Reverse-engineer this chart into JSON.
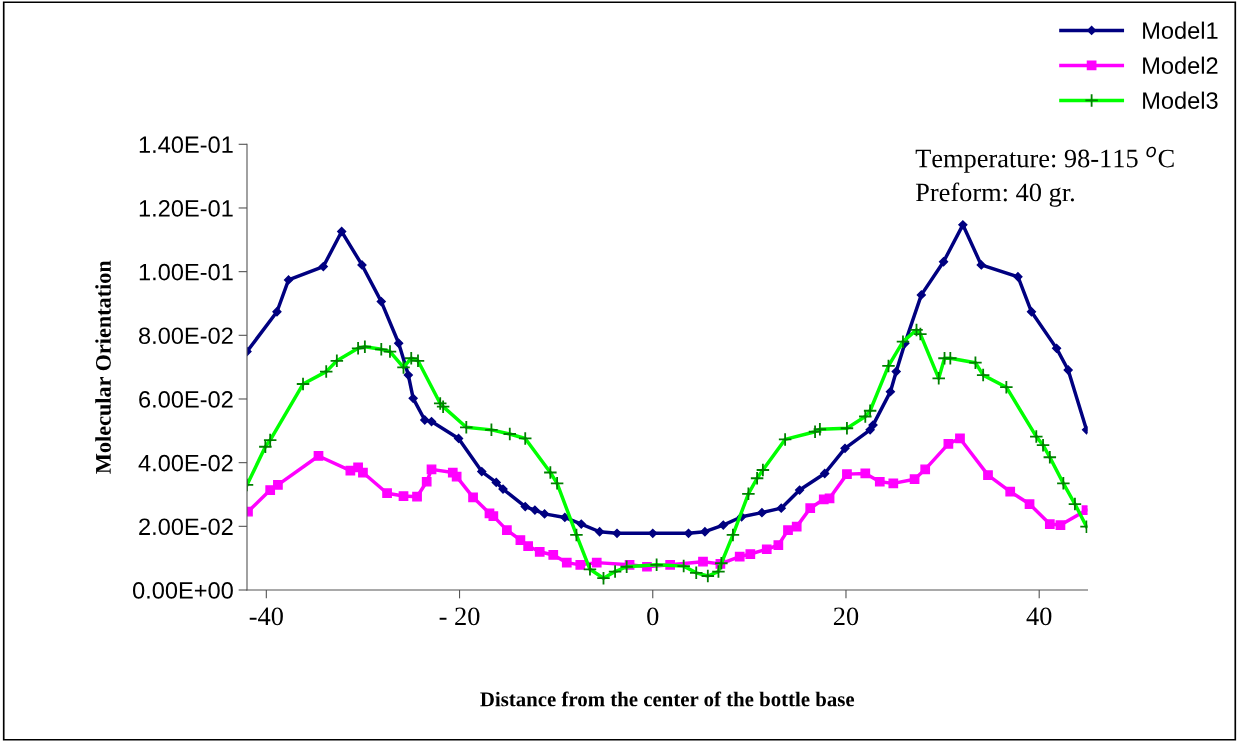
{
  "chart_data": {
    "type": "line",
    "xlabel": "Distance from the center of the bottle base",
    "ylabel": "Molecular Orientation",
    "annotations": [
      "Temperature: 98-115 $^{o}$C",
      "Preform: 40 gr."
    ],
    "xlim": [
      -42,
      45
    ],
    "xticks": [
      -40,
      {
        "value": -20,
        "label": "- 20"
      },
      0,
      20,
      40
    ],
    "ylim": [
      0,
      0.14
    ],
    "yticks": [
      {
        "value": 0,
        "label": "0.00E+00"
      },
      {
        "value": 0.02,
        "label": "2.00E-02"
      },
      {
        "value": 0.04,
        "label": "4.00E-02"
      },
      {
        "value": 0.06,
        "label": "6.00E-02"
      },
      {
        "value": 0.08,
        "label": "8.00E-02"
      },
      {
        "value": 0.1,
        "label": "1.00E-01"
      },
      {
        "value": 0.12,
        "label": "1.20E-01"
      },
      {
        "value": 0.14,
        "label": "1.40E-01"
      }
    ],
    "grid": false,
    "legend": "top right",
    "line_style": "solid",
    "series": [
      {
        "name": "Model1",
        "color": "#000080",
        "marker": "diamond",
        "x": [
          -42,
          -38.9,
          -37.7,
          -34.1,
          -32.2,
          -30.1,
          -28.1,
          -26.3,
          -25.3,
          -24.8,
          -23.6,
          -22.9,
          -20.1,
          -17.7,
          -16.2,
          -15.5,
          -13.2,
          -12.2,
          -11.2,
          -9.1,
          -7.4,
          -5.5,
          -3.7,
          0,
          3.7,
          5.4,
          7.3,
          9.2,
          11.3,
          13.3,
          15.2,
          17.8,
          19.9,
          22.5,
          22.8,
          24.6,
          25.2,
          26.1,
          27.8,
          30.1,
          32.1,
          34.0,
          37.8,
          39.2,
          41.8,
          43.0,
          44.9
        ],
        "values": [
          0.0749,
          0.0874,
          0.0974,
          0.1016,
          0.1126,
          0.1021,
          0.0906,
          0.0775,
          0.0675,
          0.0602,
          0.0534,
          0.0529,
          0.0476,
          0.0372,
          0.0338,
          0.0317,
          0.0262,
          0.0251,
          0.0239,
          0.0228,
          0.0207,
          0.0183,
          0.0178,
          0.0178,
          0.0178,
          0.0183,
          0.0204,
          0.023,
          0.0243,
          0.0257,
          0.0314,
          0.0366,
          0.0445,
          0.0503,
          0.0518,
          0.0623,
          0.0686,
          0.0775,
          0.0927,
          0.1031,
          0.1147,
          0.1021,
          0.0984,
          0.0874,
          0.0759,
          0.0691,
          0.0503
        ]
      },
      {
        "name": "Model2",
        "color": "#ff00ff",
        "marker": "square",
        "x": [
          -41.9,
          -39.6,
          -38.8,
          -34.6,
          -31.3,
          -30.5,
          -30.0,
          -27.5,
          -25.8,
          -24.4,
          -23.4,
          -22.9,
          -20.7,
          -20.3,
          -18.6,
          -16.9,
          -16.5,
          -15.1,
          -13.7,
          -12.9,
          -11.7,
          -10.3,
          -8.9,
          -7.5,
          -5.8,
          -2.4,
          -0.6,
          1.8,
          5.2,
          7.0,
          9.0,
          10.1,
          11.8,
          13.0,
          14.0,
          14.9,
          16.3,
          17.7,
          18.3,
          20.1,
          22.0,
          23.5,
          24.9,
          27.1,
          28.2,
          30.6,
          31.8,
          34.7,
          37.0,
          39.0,
          41.1,
          42.2,
          44.9
        ],
        "values": [
          0.0246,
          0.0314,
          0.033,
          0.0421,
          0.0375,
          0.0385,
          0.0369,
          0.0304,
          0.0295,
          0.0293,
          0.034,
          0.0379,
          0.0369,
          0.0356,
          0.0291,
          0.0241,
          0.0232,
          0.0188,
          0.0157,
          0.0138,
          0.012,
          0.011,
          0.0086,
          0.0079,
          0.0086,
          0.0079,
          0.0073,
          0.0079,
          0.0089,
          0.0082,
          0.0105,
          0.0113,
          0.0128,
          0.0141,
          0.0188,
          0.0199,
          0.0257,
          0.0285,
          0.0288,
          0.0364,
          0.0366,
          0.034,
          0.0335,
          0.0348,
          0.0379,
          0.0459,
          0.0476,
          0.0361,
          0.0309,
          0.027,
          0.0207,
          0.0204,
          0.0251
        ]
      },
      {
        "name": "Model3",
        "color": "#00ff00",
        "marker": "cross",
        "x": [
          -42,
          -40.1,
          -39.6,
          -36.2,
          -33.8,
          -32.7,
          -30.5,
          -29.8,
          -28.1,
          -27.2,
          -25.8,
          -25.0,
          -24.3,
          -22.0,
          -21.7,
          -19.3,
          -16.7,
          -14.8,
          -13.2,
          -10.6,
          -9.9,
          -7.9,
          -6.5,
          -5.1,
          -3.9,
          -2.7,
          0.4,
          3.2,
          4.5,
          5.7,
          6.8,
          7.1,
          8.3,
          9.9,
          10.8,
          11.4,
          13.7,
          16.8,
          17.3,
          20.1,
          22.0,
          22.5,
          24.4,
          25.9,
          27.3,
          27.7,
          29.6,
          30.2,
          30.8,
          33.4,
          34.2,
          36.6,
          39.7,
          40.4,
          41.1,
          42.5,
          43.7,
          44.9
        ],
        "values": [
          0.033,
          0.045,
          0.0471,
          0.0647,
          0.0686,
          0.072,
          0.0759,
          0.0764,
          0.0756,
          0.0749,
          0.0699,
          0.0728,
          0.072,
          0.0586,
          0.0576,
          0.0511,
          0.0503,
          0.049,
          0.0476,
          0.0369,
          0.0335,
          0.0173,
          0.0065,
          0.0037,
          0.0058,
          0.0073,
          0.0079,
          0.0075,
          0.0054,
          0.0044,
          0.0058,
          0.0084,
          0.0173,
          0.0302,
          0.0351,
          0.0377,
          0.0473,
          0.0497,
          0.0505,
          0.0508,
          0.0545,
          0.0563,
          0.0704,
          0.078,
          0.0817,
          0.0804,
          0.0665,
          0.0728,
          0.0728,
          0.0714,
          0.0675,
          0.0637,
          0.0482,
          0.0455,
          0.0417,
          0.0335,
          0.027,
          0.0199
        ]
      }
    ]
  }
}
